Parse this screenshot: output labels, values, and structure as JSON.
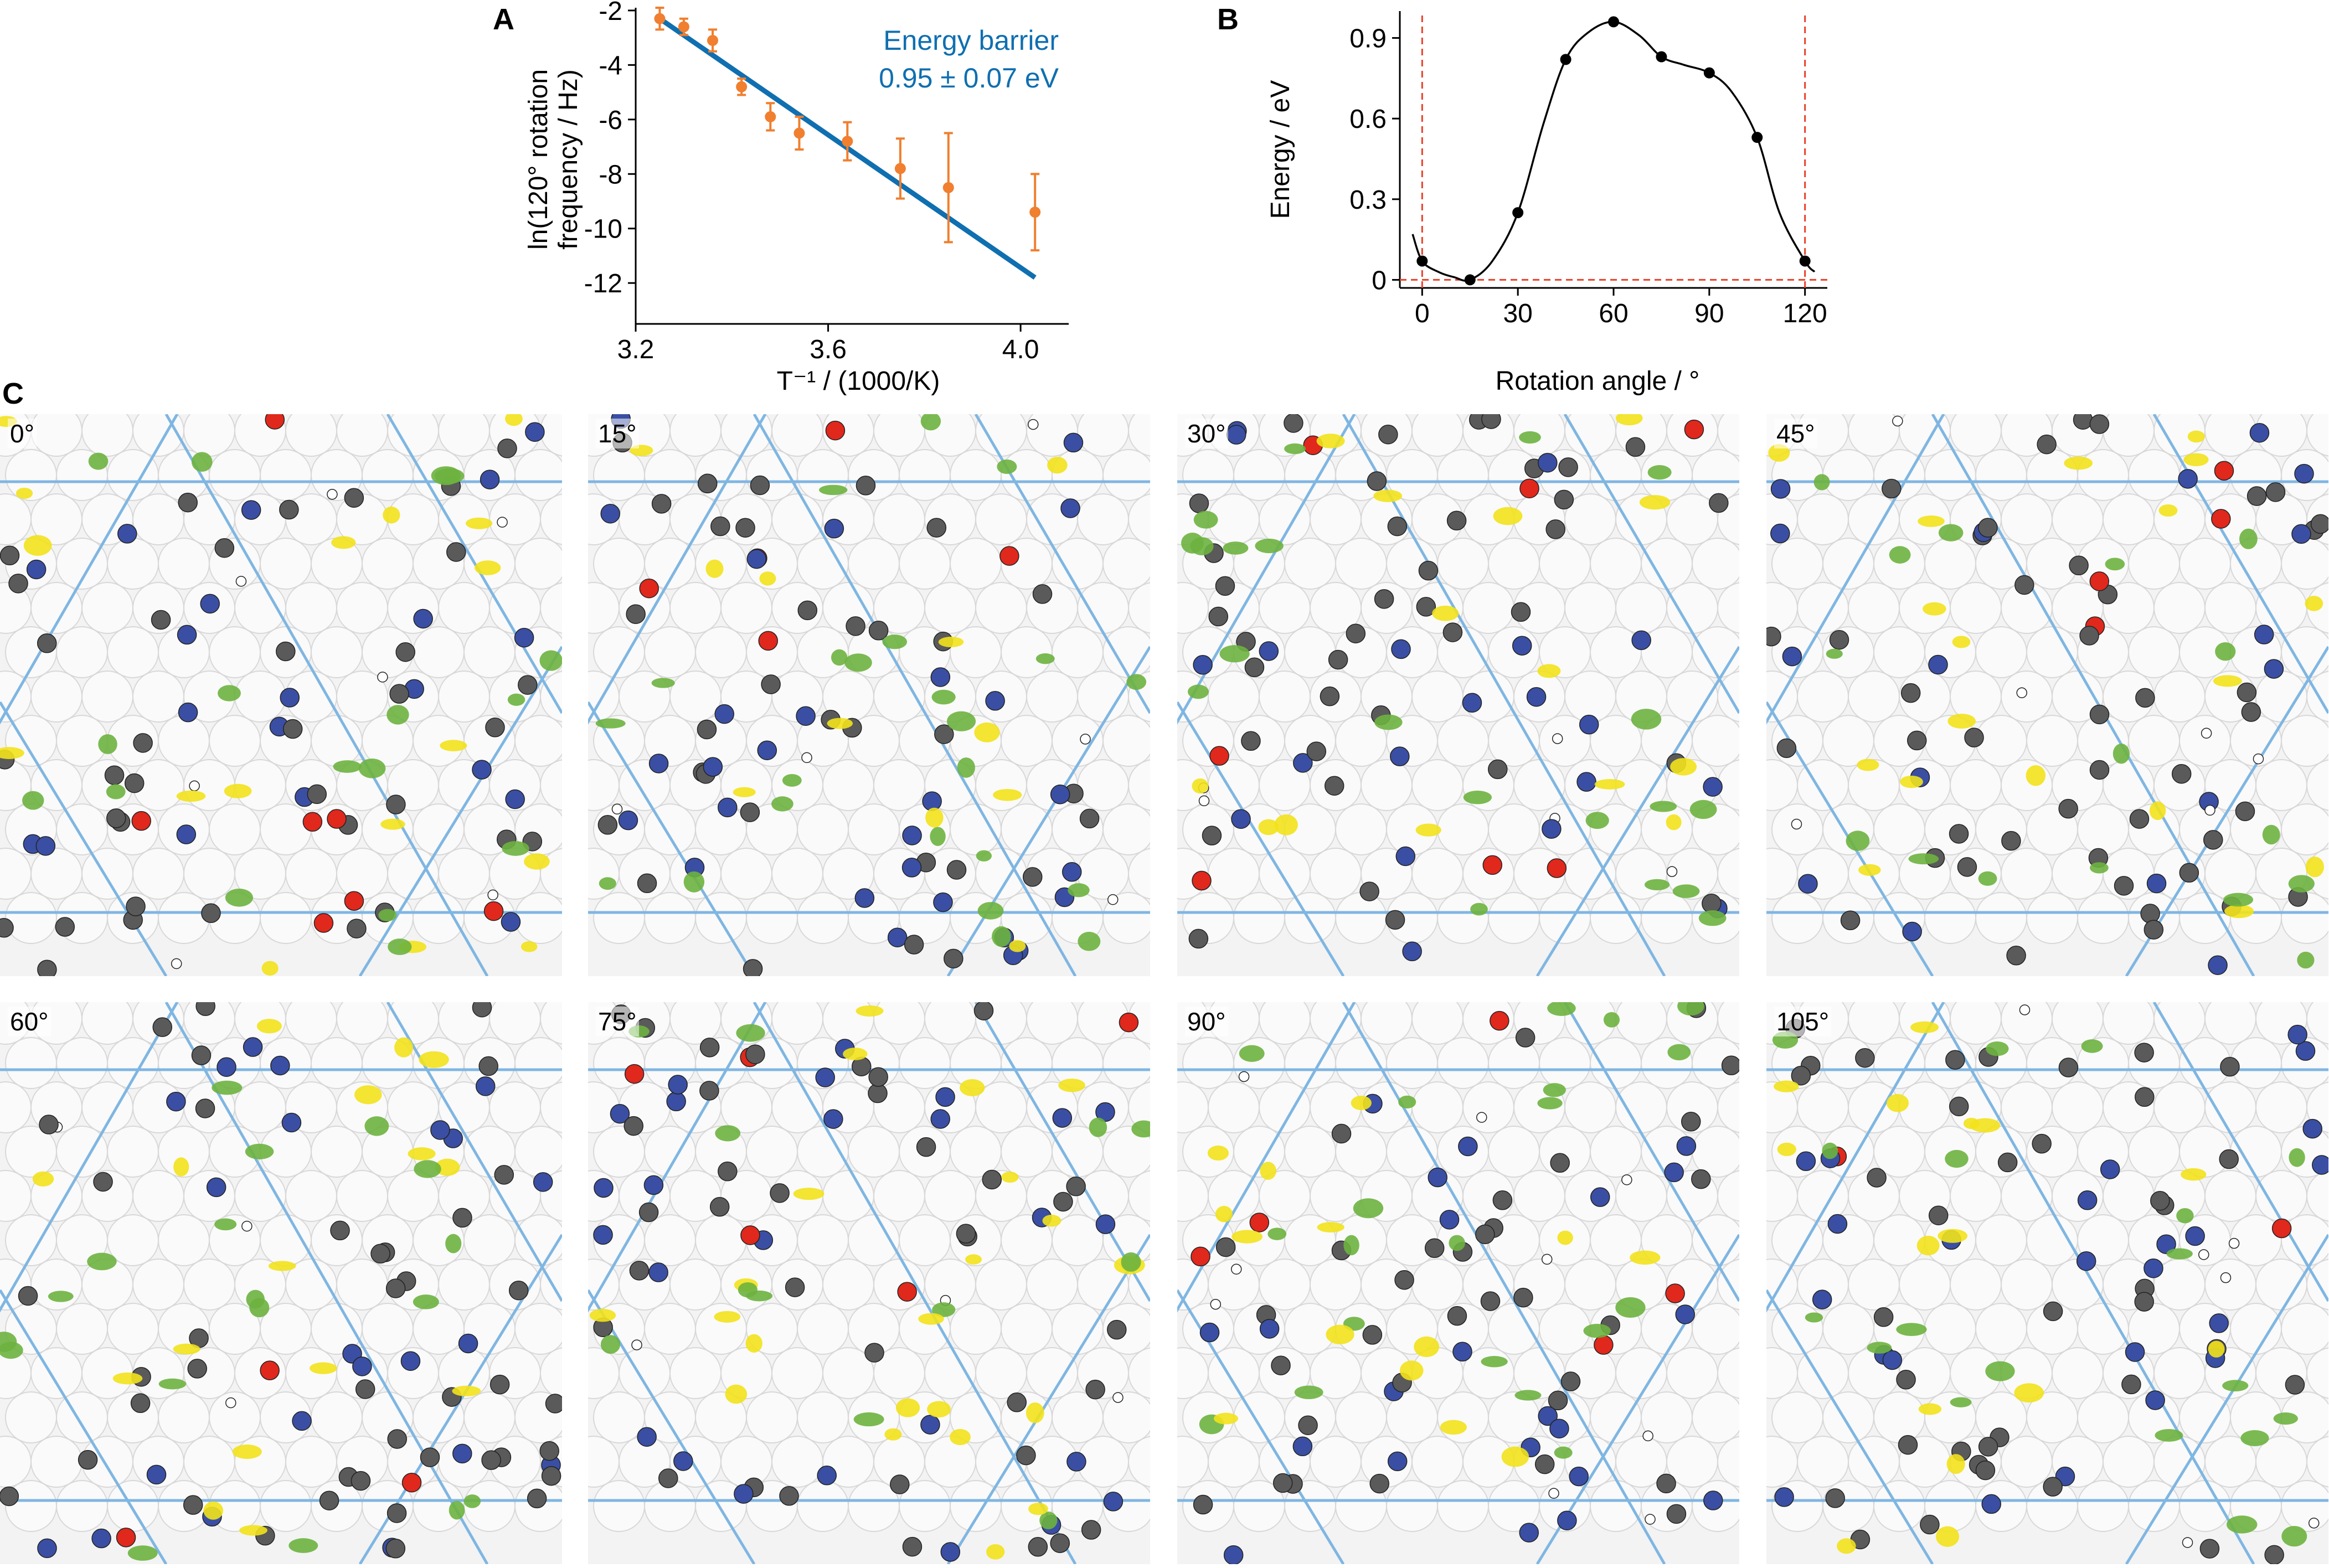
{
  "panels": {
    "a_letter": "A",
    "b_letter": "B",
    "c_letter": "C"
  },
  "chart_data": [
    {
      "type": "scatter",
      "panel": "A",
      "xlabel": "T⁻¹ / (1000/K)",
      "ylabel_line1": "ln(120° rotation",
      "ylabel_line2": "frequency / Hz)",
      "xlim": [
        3.2,
        4.1
      ],
      "ylim": [
        -13.5,
        -1.9
      ],
      "xticks": [
        3.2,
        3.6,
        4.0
      ],
      "xtick_labels": [
        "3.2",
        "3.6",
        "4.0"
      ],
      "yticks": [
        -2,
        -4,
        -6,
        -8,
        -10,
        -12
      ],
      "ytick_labels": [
        "-2",
        "-4",
        "-6",
        "-8",
        "-10",
        "-12"
      ],
      "points": {
        "color": "#f07f2f",
        "x": [
          3.25,
          3.3,
          3.36,
          3.42,
          3.48,
          3.54,
          3.64,
          3.75,
          3.85,
          4.03
        ],
        "y": [
          -2.3,
          -2.6,
          -3.1,
          -4.8,
          -5.9,
          -6.5,
          -6.8,
          -7.8,
          -8.5,
          -9.4
        ],
        "err": [
          0.4,
          0.3,
          0.4,
          0.3,
          0.5,
          0.6,
          0.7,
          1.1,
          2.0,
          1.4
        ]
      },
      "fit": {
        "color": "#0f6fb0",
        "x": [
          3.25,
          4.03
        ],
        "y": [
          -2.3,
          -11.8
        ]
      },
      "annotation_line1": "Energy barrier",
      "annotation_line2": "0.95 ± 0.07 eV"
    },
    {
      "type": "line",
      "panel": "B",
      "xlabel": "Rotation angle / °",
      "ylabel": "Energy / eV",
      "xlim": [
        -7,
        127
      ],
      "ylim": [
        -0.03,
        1.0
      ],
      "xticks": [
        0,
        30,
        60,
        90,
        120
      ],
      "xtick_labels": [
        "0",
        "30",
        "60",
        "90",
        "120"
      ],
      "yticks": [
        0,
        0.3,
        0.6,
        0.9
      ],
      "ytick_labels": [
        "0",
        "0.3",
        "0.6",
        "0.9"
      ],
      "points": {
        "x": [
          0,
          15,
          30,
          45,
          60,
          75,
          90,
          105,
          120
        ],
        "y": [
          0.07,
          0.0,
          0.25,
          0.82,
          0.96,
          0.83,
          0.77,
          0.53,
          0.07
        ]
      },
      "curve": {
        "x": [
          -3,
          0,
          5,
          10,
          15,
          22,
          30,
          38,
          45,
          52,
          60,
          68,
          75,
          82,
          90,
          97,
          105,
          112,
          120,
          123
        ],
        "y": [
          0.17,
          0.07,
          0.03,
          0.01,
          0.0,
          0.07,
          0.25,
          0.58,
          0.82,
          0.92,
          0.96,
          0.91,
          0.83,
          0.8,
          0.77,
          0.7,
          0.53,
          0.25,
          0.07,
          0.03
        ]
      },
      "dashed_guides": {
        "color": "#e8412a",
        "vertical_x": [
          0,
          120
        ],
        "horizontal_y": [
          0
        ]
      }
    }
  ],
  "snapshots": {
    "labels": [
      "0°",
      "15°",
      "30°",
      "45°",
      "60°",
      "75°",
      "90°",
      "105°"
    ]
  },
  "colors": {
    "carbon": "#5a5a5a",
    "nitrogen": "#3a4fa3",
    "oxygen": "#e0281c",
    "isosurface_yellow": "#f2e21b",
    "isosurface_green": "#6db33f",
    "lattice_line": "#7fb6e2"
  }
}
